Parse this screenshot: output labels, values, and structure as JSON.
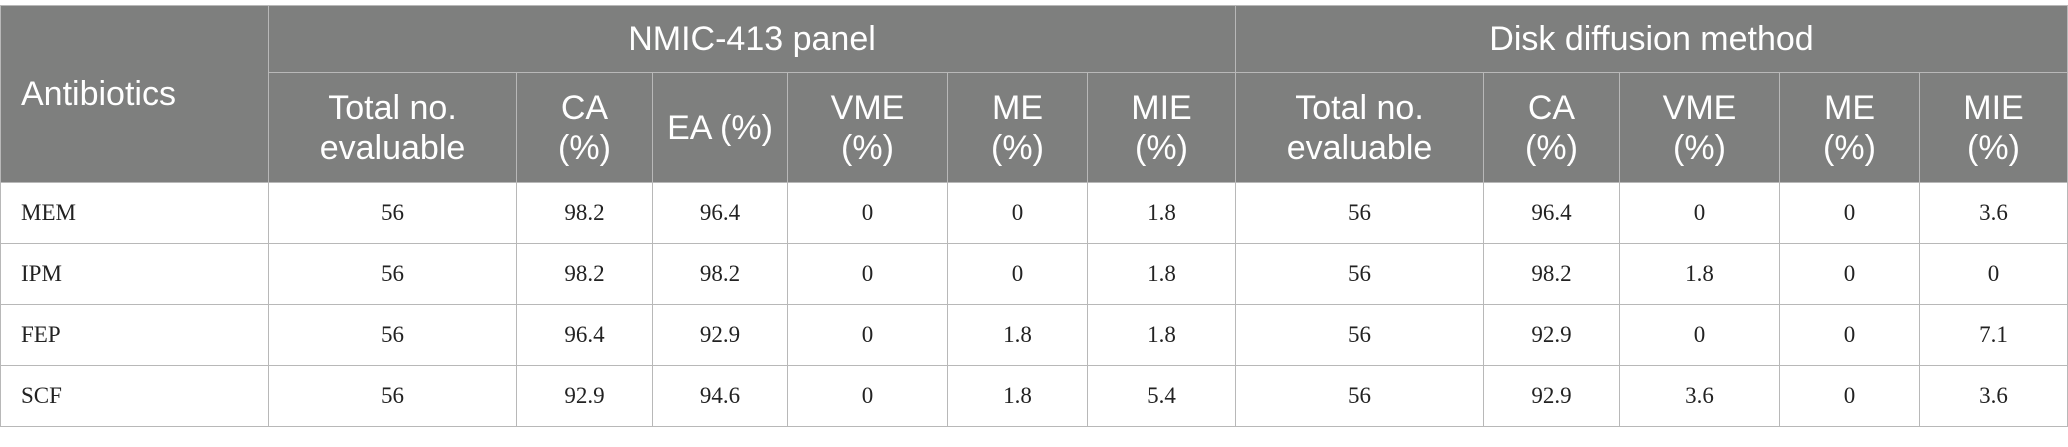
{
  "table": {
    "header": {
      "row_label": "Antibiotics",
      "groups": [
        {
          "title": "NMIC-413 panel",
          "columns": [
            "Total no. evaluable",
            "CA (%)",
            "EA (%)",
            "VME (%)",
            "ME (%)",
            "MIE (%)"
          ]
        },
        {
          "title": "Disk diffusion method",
          "columns": [
            "Total no. evaluable",
            "CA (%)",
            "VME (%)",
            "ME (%)",
            "MIE (%)"
          ]
        }
      ]
    },
    "rows": [
      [
        "MEM",
        56,
        98.2,
        96.4,
        0,
        0,
        1.8,
        56,
        96.4,
        0,
        0,
        3.6
      ],
      [
        "IPM",
        56,
        98.2,
        98.2,
        0,
        0,
        1.8,
        56,
        98.2,
        1.8,
        0,
        0
      ],
      [
        "FEP",
        56,
        96.4,
        92.9,
        0,
        1.8,
        1.8,
        56,
        92.9,
        0,
        0,
        7.1
      ],
      [
        "SCF",
        56,
        92.9,
        94.6,
        0,
        1.8,
        5.4,
        56,
        92.9,
        3.6,
        0,
        3.6
      ]
    ]
  }
}
